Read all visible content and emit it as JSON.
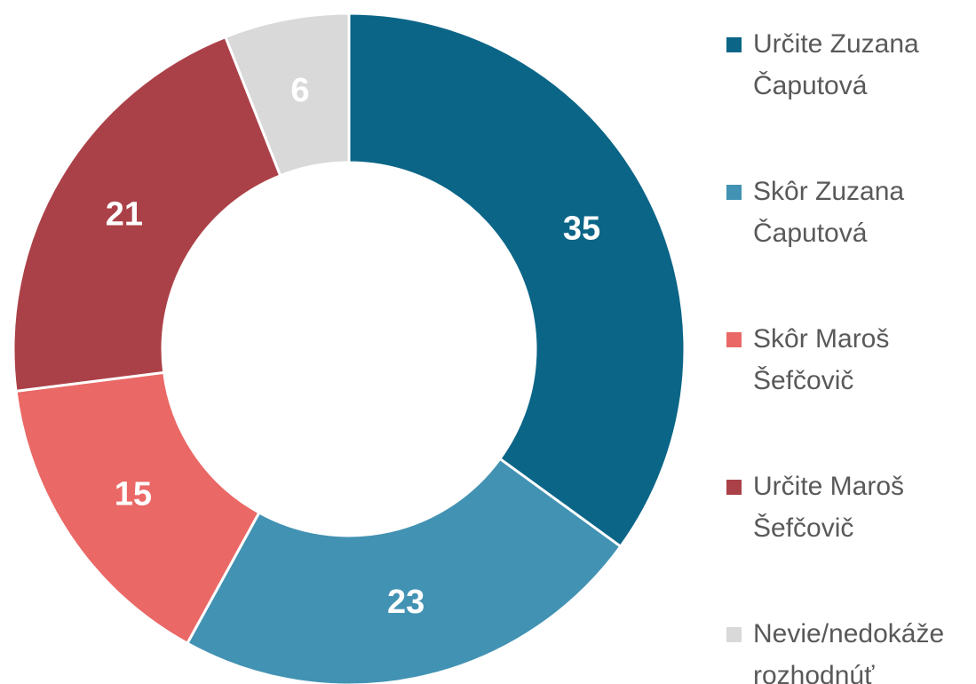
{
  "chart_data": {
    "type": "donut",
    "categories": [
      "Určite Zuzana Čaputová",
      "Skôr Zuzana Čaputová",
      "Skôr Maroš Šefčovič",
      "Určite Maroš Šefčovič",
      "Nevie/nedokáže rozhodnúť"
    ],
    "values": [
      35,
      23,
      15,
      21,
      6
    ],
    "colors": [
      "#0b6587",
      "#4292b3",
      "#ea6866",
      "#ab4148",
      "#d9d9d9"
    ],
    "legend": "right"
  }
}
